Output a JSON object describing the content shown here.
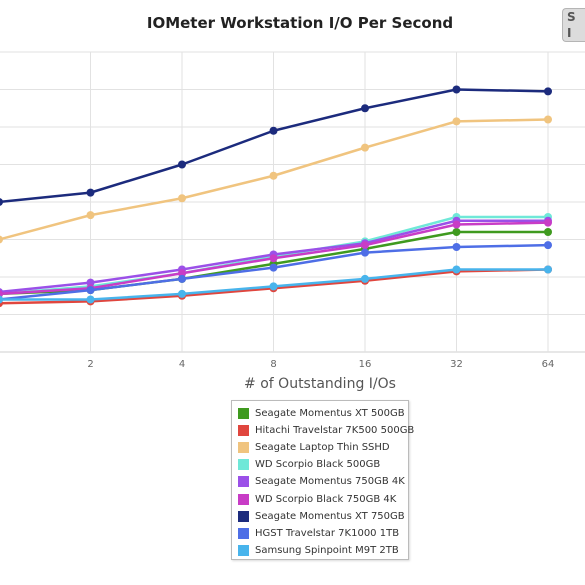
{
  "chart_data": {
    "type": "line",
    "title": "IOMeter Workstation I/O Per Second",
    "xlabel": "# of Outstanding I/Os",
    "ylabel": "",
    "x": [
      1,
      2,
      4,
      8,
      16,
      32,
      64
    ],
    "xtick_labels": [
      "",
      "2",
      "4",
      "8",
      "16",
      "32",
      "64"
    ],
    "x_scale": "log2",
    "xlim": [
      1,
      128
    ],
    "ylim": [
      0,
      8
    ],
    "grid": true,
    "legend_position": "bottom-center",
    "series": [
      {
        "name": "Seagate Momentus XT 500GB",
        "color": "#3f9a1f",
        "values": [
          1.55,
          1.65,
          1.95,
          2.35,
          2.75,
          3.2,
          3.2
        ]
      },
      {
        "name": "Hitachi Travelstar 7K500 500GB",
        "color": "#e0463e",
        "values": [
          1.3,
          1.35,
          1.5,
          1.7,
          1.9,
          2.15,
          2.2
        ]
      },
      {
        "name": "Seagate Laptop Thin SSHD",
        "color": "#f0c47f",
        "values": [
          3.0,
          3.65,
          4.1,
          4.7,
          5.45,
          6.15,
          6.2
        ]
      },
      {
        "name": "WD Scorpio Black 500GB",
        "color": "#6fe8d8",
        "values": [
          1.55,
          1.75,
          2.1,
          2.55,
          2.95,
          3.6,
          3.6
        ]
      },
      {
        "name": "Seagate Momentus 750GB 4K",
        "color": "#9b50e8",
        "values": [
          1.6,
          1.85,
          2.2,
          2.6,
          2.9,
          3.5,
          3.5
        ]
      },
      {
        "name": "WD Scorpio Black 750GB 4K",
        "color": "#c83cc6",
        "values": [
          1.55,
          1.7,
          2.1,
          2.5,
          2.85,
          3.4,
          3.45
        ]
      },
      {
        "name": "Seagate Momentus XT 750GB",
        "color": "#1c2b7d",
        "values": [
          4.0,
          4.25,
          5.0,
          5.9,
          6.5,
          7.0,
          6.95
        ]
      },
      {
        "name": "HGST Travelstar 7K1000 1TB",
        "color": "#4e6ee6",
        "values": [
          1.4,
          1.65,
          1.95,
          2.25,
          2.65,
          2.8,
          2.85
        ]
      },
      {
        "name": "Samsung Spinpoint M9T 2TB",
        "color": "#48b4ec",
        "values": [
          1.4,
          1.4,
          1.55,
          1.75,
          1.95,
          2.2,
          2.2
        ]
      }
    ]
  }
}
